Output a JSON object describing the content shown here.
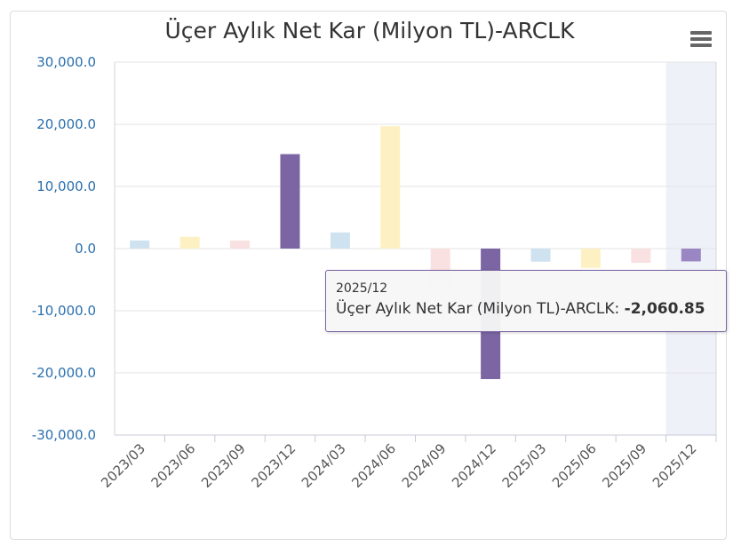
{
  "chart_data": {
    "type": "bar",
    "title": "Üçer Aylık Net Kar (Milyon TL)-ARCLK",
    "categories": [
      "2023/03",
      "2023/06",
      "2023/09",
      "2023/12",
      "2024/03",
      "2024/06",
      "2024/09",
      "2024/12",
      "2025/03",
      "2025/06",
      "2025/09",
      "2025/12"
    ],
    "series": [
      {
        "name": "Üçer Aylık Net Kar (Milyon TL)-ARCLK",
        "values": [
          1300,
          1900,
          1300,
          15200,
          2600,
          19700,
          -6100,
          -21000,
          -2100,
          -3100,
          -2300,
          -2060.85
        ]
      }
    ],
    "ylim": [
      -30000,
      30000
    ],
    "yticks": [
      "30,000.0",
      "20,000.0",
      "10,000.0",
      "0.0",
      "-10,000.0",
      "-20,000.0",
      "-30,000.0"
    ],
    "grid": true,
    "bar_colors": [
      "#cfe2f0",
      "#fdf1c4",
      "#f9e1e1",
      "#7b65a3",
      "#cfe2f0",
      "#fdf1c4",
      "#f9e1e1",
      "#7b65a3",
      "#cfe2f0",
      "#fdf1c4",
      "#f9e1e1",
      "#9b86c4"
    ],
    "highlight_index": 11,
    "tooltip": {
      "category": "2025/12",
      "series_label": "Üçer Aylık Net Kar (Milyon TL)-ARCLK:",
      "value": "-2,060.85"
    }
  },
  "menu_icon": "hamburger-menu-icon"
}
